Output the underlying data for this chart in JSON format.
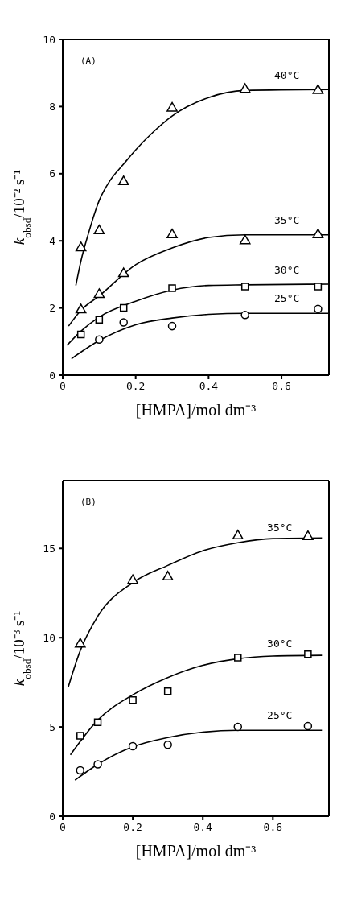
{
  "chart_data": [
    {
      "type": "scatter",
      "xlabel": "[HMPA]/mol dm⁻³",
      "ylabel": "k$_{obsd}$/10⁻² s⁻¹",
      "xlim": [
        0,
        0.73
      ],
      "xticks": [
        0,
        0.2,
        0.4,
        0.6
      ],
      "ylim": [
        0,
        10
      ],
      "yticks": [
        0,
        2,
        4,
        6,
        8,
        10
      ],
      "grid": false,
      "legend": false,
      "annotations": [
        "(A)"
      ],
      "series": [
        {
          "marker": "triangle",
          "color": "#000000",
          "x": [
            0.05,
            0.1,
            0.167,
            0.3,
            0.5,
            0.7
          ],
          "values": [
            3.79,
            4.3,
            5.76,
            7.95,
            8.51,
            8.48
          ]
        },
        {
          "marker": "triangle",
          "color": "#000000",
          "x": [
            0.05,
            0.1,
            0.167,
            0.3,
            0.5,
            0.7
          ],
          "values": [
            1.94,
            2.4,
            3.02,
            4.18,
            4.0,
            4.18
          ]
        },
        {
          "marker": "square",
          "color": "#000000",
          "x": [
            0.05,
            0.1,
            0.167,
            0.3,
            0.5,
            0.7
          ],
          "values": [
            1.21,
            1.65,
            2.0,
            2.59,
            2.64,
            2.64
          ]
        },
        {
          "marker": "circle",
          "color": "#000000",
          "x": [
            0.1,
            0.167,
            0.3,
            0.5,
            0.7
          ],
          "values": [
            1.06,
            1.57,
            1.46,
            1.79,
            1.97
          ]
        },
        {
          "type": "line",
          "name": "40°C",
          "marker": "none",
          "line_style": "solid",
          "color": "#000000",
          "x": [
            0.036,
            0.05,
            0.07,
            0.1,
            0.13,
            0.168,
            0.2,
            0.25,
            0.3,
            0.4,
            0.5,
            0.73
          ],
          "values": [
            2.67,
            3.4,
            4.2,
            5.2,
            5.8,
            6.3,
            6.71,
            7.26,
            7.72,
            8.27,
            8.48,
            8.51
          ]
        },
        {
          "type": "line",
          "name": "35°C",
          "marker": "none",
          "line_style": "solid",
          "color": "#000000",
          "x": [
            0.016,
            0.05,
            0.1,
            0.2,
            0.3,
            0.4,
            0.5,
            0.73
          ],
          "values": [
            1.46,
            1.93,
            2.36,
            3.29,
            3.79,
            4.1,
            4.18,
            4.18
          ]
        },
        {
          "type": "line",
          "name": "30°C",
          "marker": "none",
          "line_style": "solid",
          "color": "#000000",
          "x": [
            0.012,
            0.05,
            0.1,
            0.2,
            0.3,
            0.4,
            0.5,
            0.73
          ],
          "values": [
            0.89,
            1.31,
            1.73,
            2.2,
            2.53,
            2.67,
            2.69,
            2.71
          ]
        },
        {
          "type": "line",
          "name": "25°C",
          "marker": "none",
          "line_style": "solid",
          "color": "#000000",
          "x": [
            0.024,
            0.1,
            0.2,
            0.3,
            0.4,
            0.5,
            0.73
          ],
          "values": [
            0.49,
            1.03,
            1.5,
            1.7,
            1.81,
            1.84,
            1.84
          ]
        }
      ]
    },
    {
      "type": "scatter",
      "xlabel": "[HMPA]/mol dm⁻³",
      "ylabel": "k$_{obsd}$/10⁻³ s⁻¹",
      "xlim": [
        0,
        0.76
      ],
      "xticks": [
        0,
        0.2,
        0.4,
        0.6
      ],
      "ylim": [
        0,
        18.8
      ],
      "yticks": [
        0,
        5,
        10,
        15
      ],
      "grid": false,
      "legend": false,
      "annotations": [
        "(B)"
      ],
      "series": [
        {
          "marker": "triangle",
          "color": "#000000",
          "x": [
            0.05,
            0.2,
            0.3,
            0.5,
            0.7
          ],
          "values": [
            9.64,
            13.2,
            13.4,
            15.7,
            15.66
          ]
        },
        {
          "marker": "square",
          "color": "#000000",
          "x": [
            0.05,
            0.1,
            0.2,
            0.3,
            0.5,
            0.7
          ],
          "values": [
            4.51,
            5.26,
            6.5,
            7.0,
            8.88,
            9.07
          ]
        },
        {
          "marker": "circle",
          "color": "#000000",
          "x": [
            0.05,
            0.1,
            0.2,
            0.3,
            0.5,
            0.7
          ],
          "values": [
            2.57,
            2.91,
            3.92,
            4.0,
            5.0,
            5.05
          ]
        },
        {
          "type": "line",
          "name": "35°C",
          "marker": "none",
          "line_style": "solid",
          "color": "#000000",
          "x": [
            0.016,
            0.05,
            0.1,
            0.2,
            0.3,
            0.4,
            0.5,
            0.6,
            0.74
          ],
          "values": [
            7.25,
            9.27,
            11.2,
            13.08,
            14.05,
            14.87,
            15.32,
            15.55,
            15.59
          ]
        },
        {
          "type": "line",
          "name": "30°C",
          "marker": "none",
          "line_style": "solid",
          "color": "#000000",
          "x": [
            0.022,
            0.1,
            0.2,
            0.3,
            0.4,
            0.5,
            0.6,
            0.74
          ],
          "values": [
            3.44,
            5.38,
            6.8,
            7.77,
            8.45,
            8.82,
            8.97,
            9.01
          ]
        },
        {
          "type": "line",
          "name": "25°C",
          "marker": "none",
          "line_style": "solid",
          "color": "#000000",
          "x": [
            0.035,
            0.1,
            0.2,
            0.3,
            0.4,
            0.5,
            0.74
          ],
          "values": [
            2.02,
            2.91,
            3.89,
            4.41,
            4.71,
            4.81,
            4.81
          ]
        }
      ]
    }
  ]
}
